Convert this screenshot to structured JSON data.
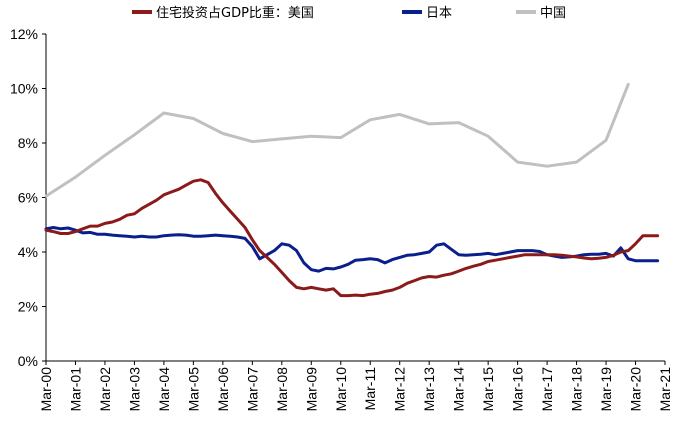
{
  "chart_data": {
    "type": "line",
    "title": "",
    "xlabel": "",
    "ylabel": "",
    "ylim": [
      0,
      12
    ],
    "yticks": [
      "0%",
      "2%",
      "4%",
      "6%",
      "8%",
      "10%",
      "12%"
    ],
    "ytick_values": [
      0,
      2,
      4,
      6,
      8,
      10,
      12
    ],
    "categories": [
      "Mar-00",
      "Mar-01",
      "Mar-02",
      "Mar-03",
      "Mar-04",
      "Mar-05",
      "Mar-06",
      "Mar-07",
      "Mar-08",
      "Mar-09",
      "Mar-10",
      "Mar-11",
      "Mar-12",
      "Mar-13",
      "Mar-14",
      "Mar-15",
      "Mar-16",
      "Mar-17",
      "Mar-18",
      "Mar-19",
      "Mar-20",
      "Mar-21"
    ],
    "grid": false,
    "legend_position": "top",
    "series": [
      {
        "name": "住宅投资占GDP比重：美国",
        "color": "#8B1A1A",
        "x": [
          2000.0,
          2000.25,
          2000.5,
          2000.75,
          2001.0,
          2001.25,
          2001.5,
          2001.75,
          2002.0,
          2002.25,
          2002.5,
          2002.75,
          2003.0,
          2003.25,
          2003.5,
          2003.75,
          2004.0,
          2004.25,
          2004.5,
          2004.75,
          2005.0,
          2005.25,
          2005.5,
          2005.75,
          2006.0,
          2006.25,
          2006.5,
          2006.75,
          2007.0,
          2007.25,
          2007.5,
          2007.75,
          2008.0,
          2008.25,
          2008.5,
          2008.75,
          2009.0,
          2009.25,
          2009.5,
          2009.75,
          2010.0,
          2010.25,
          2010.5,
          2010.75,
          2011.0,
          2011.25,
          2011.5,
          2011.75,
          2012.0,
          2012.25,
          2012.5,
          2012.75,
          2013.0,
          2013.25,
          2013.5,
          2013.75,
          2014.0,
          2014.25,
          2014.5,
          2014.75,
          2015.0,
          2015.25,
          2015.5,
          2015.75,
          2016.0,
          2016.25,
          2016.5,
          2016.75,
          2017.0,
          2017.25,
          2017.5,
          2017.75,
          2018.0,
          2018.25,
          2018.5,
          2018.75,
          2019.0,
          2019.25,
          2019.5,
          2019.75,
          2020.0,
          2020.25,
          2020.5,
          2020.75,
          2021.0
        ],
        "values": [
          4.8,
          4.75,
          4.68,
          4.68,
          4.75,
          4.85,
          4.95,
          4.95,
          5.05,
          5.1,
          5.2,
          5.35,
          5.4,
          5.6,
          5.75,
          5.9,
          6.1,
          6.2,
          6.3,
          6.45,
          6.6,
          6.65,
          6.55,
          6.15,
          5.8,
          5.5,
          5.2,
          4.9,
          4.45,
          4.05,
          3.8,
          3.55,
          3.25,
          2.95,
          2.7,
          2.65,
          2.7,
          2.65,
          2.6,
          2.65,
          2.4,
          2.4,
          2.42,
          2.4,
          2.45,
          2.48,
          2.55,
          2.6,
          2.7,
          2.85,
          2.95,
          3.05,
          3.1,
          3.08,
          3.15,
          3.2,
          3.3,
          3.4,
          3.48,
          3.55,
          3.65,
          3.7,
          3.75,
          3.8,
          3.85,
          3.9,
          3.9,
          3.9,
          3.9,
          3.9,
          3.88,
          3.85,
          3.82,
          3.78,
          3.75,
          3.77,
          3.8,
          3.88,
          4.0,
          4.05,
          4.3,
          4.6,
          4.6,
          4.6,
          4.6
        ],
        "plot_until": 2020.75
      },
      {
        "name": "日本",
        "color": "#0A1E8C",
        "x": [
          2000.0,
          2000.25,
          2000.5,
          2000.75,
          2001.0,
          2001.25,
          2001.5,
          2001.75,
          2002.0,
          2002.25,
          2002.5,
          2002.75,
          2003.0,
          2003.25,
          2003.5,
          2003.75,
          2004.0,
          2004.25,
          2004.5,
          2004.75,
          2005.0,
          2005.25,
          2005.5,
          2005.75,
          2006.0,
          2006.25,
          2006.5,
          2006.75,
          2007.0,
          2007.25,
          2007.5,
          2007.75,
          2008.0,
          2008.25,
          2008.5,
          2008.75,
          2009.0,
          2009.25,
          2009.5,
          2009.75,
          2010.0,
          2010.25,
          2010.5,
          2010.75,
          2011.0,
          2011.25,
          2011.5,
          2011.75,
          2012.0,
          2012.25,
          2012.5,
          2012.75,
          2013.0,
          2013.25,
          2013.5,
          2013.75,
          2014.0,
          2014.25,
          2014.5,
          2014.75,
          2015.0,
          2015.25,
          2015.5,
          2015.75,
          2016.0,
          2016.25,
          2016.5,
          2016.75,
          2017.0,
          2017.25,
          2017.5,
          2017.75,
          2018.0,
          2018.25,
          2018.5,
          2018.75,
          2019.0,
          2019.25,
          2019.5,
          2019.75,
          2020.0,
          2020.25,
          2020.5,
          2020.75,
          2021.0
        ],
        "values": [
          4.85,
          4.9,
          4.85,
          4.88,
          4.8,
          4.7,
          4.72,
          4.65,
          4.65,
          4.62,
          4.6,
          4.58,
          4.55,
          4.58,
          4.55,
          4.55,
          4.6,
          4.62,
          4.63,
          4.62,
          4.58,
          4.58,
          4.6,
          4.62,
          4.6,
          4.58,
          4.55,
          4.5,
          4.2,
          3.75,
          3.9,
          4.05,
          4.3,
          4.25,
          4.05,
          3.6,
          3.35,
          3.3,
          3.4,
          3.38,
          3.45,
          3.55,
          3.7,
          3.72,
          3.75,
          3.72,
          3.6,
          3.72,
          3.8,
          3.88,
          3.9,
          3.95,
          4.0,
          4.25,
          4.3,
          4.1,
          3.9,
          3.88,
          3.9,
          3.92,
          3.95,
          3.9,
          3.95,
          4.0,
          4.05,
          4.05,
          4.05,
          4.02,
          3.9,
          3.85,
          3.8,
          3.82,
          3.85,
          3.9,
          3.92,
          3.92,
          3.95,
          3.85,
          4.15,
          3.75,
          3.68,
          3.68,
          3.68,
          3.68,
          3.68
        ],
        "plot_until": 2020.75
      },
      {
        "name": "中国",
        "color": "#C0C0C0",
        "x": [
          2000.0,
          2001.0,
          2002.0,
          2003.0,
          2004.0,
          2005.0,
          2006.0,
          2007.0,
          2008.0,
          2009.0,
          2010.0,
          2011.0,
          2012.0,
          2013.0,
          2014.0,
          2015.0,
          2016.0,
          2017.0,
          2018.0,
          2019.0,
          2019.75
        ],
        "values": [
          6.05,
          6.75,
          7.55,
          8.3,
          9.1,
          8.9,
          8.35,
          8.05,
          8.15,
          8.25,
          8.2,
          8.85,
          9.05,
          8.7,
          8.75,
          8.25,
          7.3,
          7.15,
          7.3,
          8.1,
          10.15
        ],
        "plot_until": 2019.75
      }
    ]
  }
}
